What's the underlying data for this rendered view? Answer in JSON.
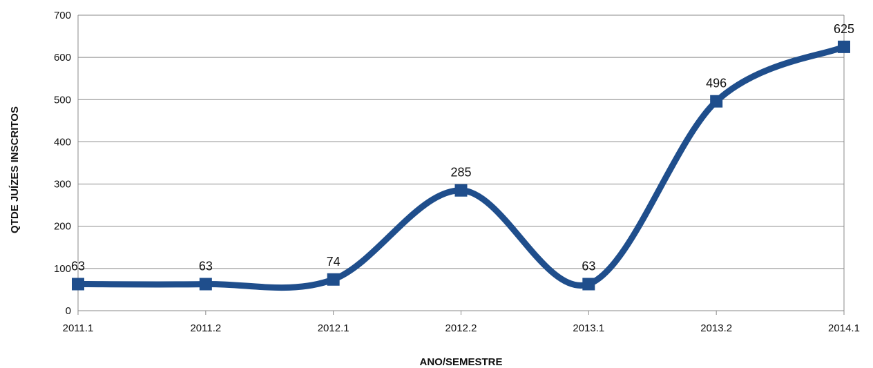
{
  "chart_data": {
    "type": "line",
    "smooth": true,
    "xlabel": "ANO/SEMESTRE",
    "ylabel": "QTDE  JUÍZES INSCRITOS",
    "ylim": [
      0,
      700
    ],
    "yticks": [
      0,
      100,
      200,
      300,
      400,
      500,
      600,
      700
    ],
    "grid": true,
    "legend": "none",
    "categories": [
      "2011.1",
      "2011.2",
      "2012.1",
      "2012.2",
      "2013.1",
      "2013.2",
      "2014.1"
    ],
    "series": [
      {
        "values": [
          63,
          63,
          74,
          285,
          63,
          496,
          625
        ],
        "labels": [
          "63",
          "63",
          "74",
          "285",
          "63",
          "496",
          "625"
        ],
        "color": "#1f4e8c",
        "marker": "square"
      }
    ]
  }
}
